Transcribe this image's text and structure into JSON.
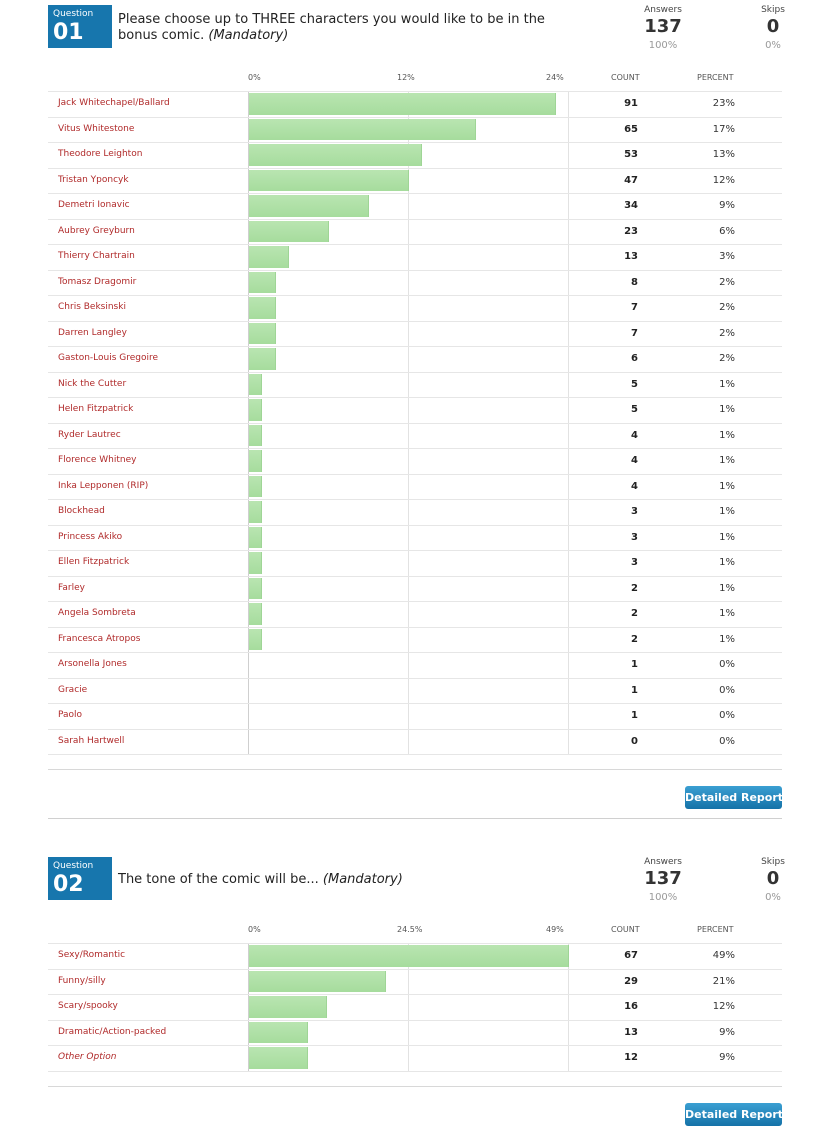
{
  "questions": [
    {
      "badge": "Question",
      "number": "01",
      "title": "Please choose up to THREE characters you would like to be in the bonus comic.",
      "required": "(Mandatory)",
      "answers_label": "Answers",
      "answers": 137,
      "answers_pct": "100%",
      "skips_label": "Skips",
      "skips": 0,
      "skips_pct": "0%",
      "xlim": [
        0,
        24
      ],
      "xticks": [
        {
          "value": 0,
          "label": "0%"
        },
        {
          "value": 12,
          "label": "12%"
        },
        {
          "value": 24,
          "label": "24%"
        }
      ],
      "count_header": "COUNT",
      "percent_header": "PERCENT",
      "rows": [
        {
          "label": "Jack Whitechapel/Ballard",
          "count": 91,
          "percent": 23,
          "percent_label": "23%"
        },
        {
          "label": "Vitus Whitestone",
          "count": 65,
          "percent": 17,
          "percent_label": "17%"
        },
        {
          "label": "Theodore Leighton",
          "count": 53,
          "percent": 13,
          "percent_label": "13%"
        },
        {
          "label": "Tristan Yponcyk",
          "count": 47,
          "percent": 12,
          "percent_label": "12%"
        },
        {
          "label": "Demetri Ionavic",
          "count": 34,
          "percent": 9,
          "percent_label": "9%"
        },
        {
          "label": "Aubrey Greyburn",
          "count": 23,
          "percent": 6,
          "percent_label": "6%"
        },
        {
          "label": "Thierry Chartrain",
          "count": 13,
          "percent": 3,
          "percent_label": "3%"
        },
        {
          "label": "Tomasz Dragomir",
          "count": 8,
          "percent": 2,
          "percent_label": "2%"
        },
        {
          "label": "Chris Beksinski",
          "count": 7,
          "percent": 2,
          "percent_label": "2%"
        },
        {
          "label": "Darren Langley",
          "count": 7,
          "percent": 2,
          "percent_label": "2%"
        },
        {
          "label": "Gaston-Louis Gregoire",
          "count": 6,
          "percent": 2,
          "percent_label": "2%"
        },
        {
          "label": "Nick the Cutter",
          "count": 5,
          "percent": 1,
          "percent_label": "1%"
        },
        {
          "label": "Helen Fitzpatrick",
          "count": 5,
          "percent": 1,
          "percent_label": "1%"
        },
        {
          "label": "Ryder Lautrec",
          "count": 4,
          "percent": 1,
          "percent_label": "1%"
        },
        {
          "label": "Florence Whitney",
          "count": 4,
          "percent": 1,
          "percent_label": "1%"
        },
        {
          "label": "Inka Lepponen (RIP)",
          "count": 4,
          "percent": 1,
          "percent_label": "1%"
        },
        {
          "label": "Blockhead",
          "count": 3,
          "percent": 1,
          "percent_label": "1%"
        },
        {
          "label": "Princess Akiko",
          "count": 3,
          "percent": 1,
          "percent_label": "1%"
        },
        {
          "label": "Ellen Fitzpatrick",
          "count": 3,
          "percent": 1,
          "percent_label": "1%"
        },
        {
          "label": "Farley",
          "count": 2,
          "percent": 1,
          "percent_label": "1%"
        },
        {
          "label": "Angela Sombreta",
          "count": 2,
          "percent": 1,
          "percent_label": "1%"
        },
        {
          "label": "Francesca Atropos",
          "count": 2,
          "percent": 1,
          "percent_label": "1%"
        },
        {
          "label": "Arsonella Jones",
          "count": 1,
          "percent": 0,
          "percent_label": "0%"
        },
        {
          "label": "Gracie",
          "count": 1,
          "percent": 0,
          "percent_label": "0%"
        },
        {
          "label": "Paolo",
          "count": 1,
          "percent": 0,
          "percent_label": "0%"
        },
        {
          "label": "Sarah Hartwell",
          "count": 0,
          "percent": 0,
          "percent_label": "0%"
        }
      ],
      "button": "Detailed Report"
    },
    {
      "badge": "Question",
      "number": "02",
      "title": "The tone of the comic will be...",
      "required": "(Mandatory)",
      "answers_label": "Answers",
      "answers": 137,
      "answers_pct": "100%",
      "skips_label": "Skips",
      "skips": 0,
      "skips_pct": "0%",
      "xlim": [
        0,
        49
      ],
      "xticks": [
        {
          "value": 0,
          "label": "0%"
        },
        {
          "value": 24.5,
          "label": "24.5%"
        },
        {
          "value": 49,
          "label": "49%"
        }
      ],
      "count_header": "COUNT",
      "percent_header": "PERCENT",
      "rows": [
        {
          "label": "Sexy/Romantic",
          "count": 67,
          "percent": 49,
          "percent_label": "49%"
        },
        {
          "label": "Funny/silly",
          "count": 29,
          "percent": 21,
          "percent_label": "21%"
        },
        {
          "label": "Scary/spooky",
          "count": 16,
          "percent": 12,
          "percent_label": "12%"
        },
        {
          "label": "Dramatic/Action-packed",
          "count": 13,
          "percent": 9,
          "percent_label": "9%"
        },
        {
          "label": "Other Option",
          "count": 12,
          "percent": 9,
          "percent_label": "9%",
          "italic": true
        }
      ],
      "button": "Detailed Report"
    }
  ]
}
